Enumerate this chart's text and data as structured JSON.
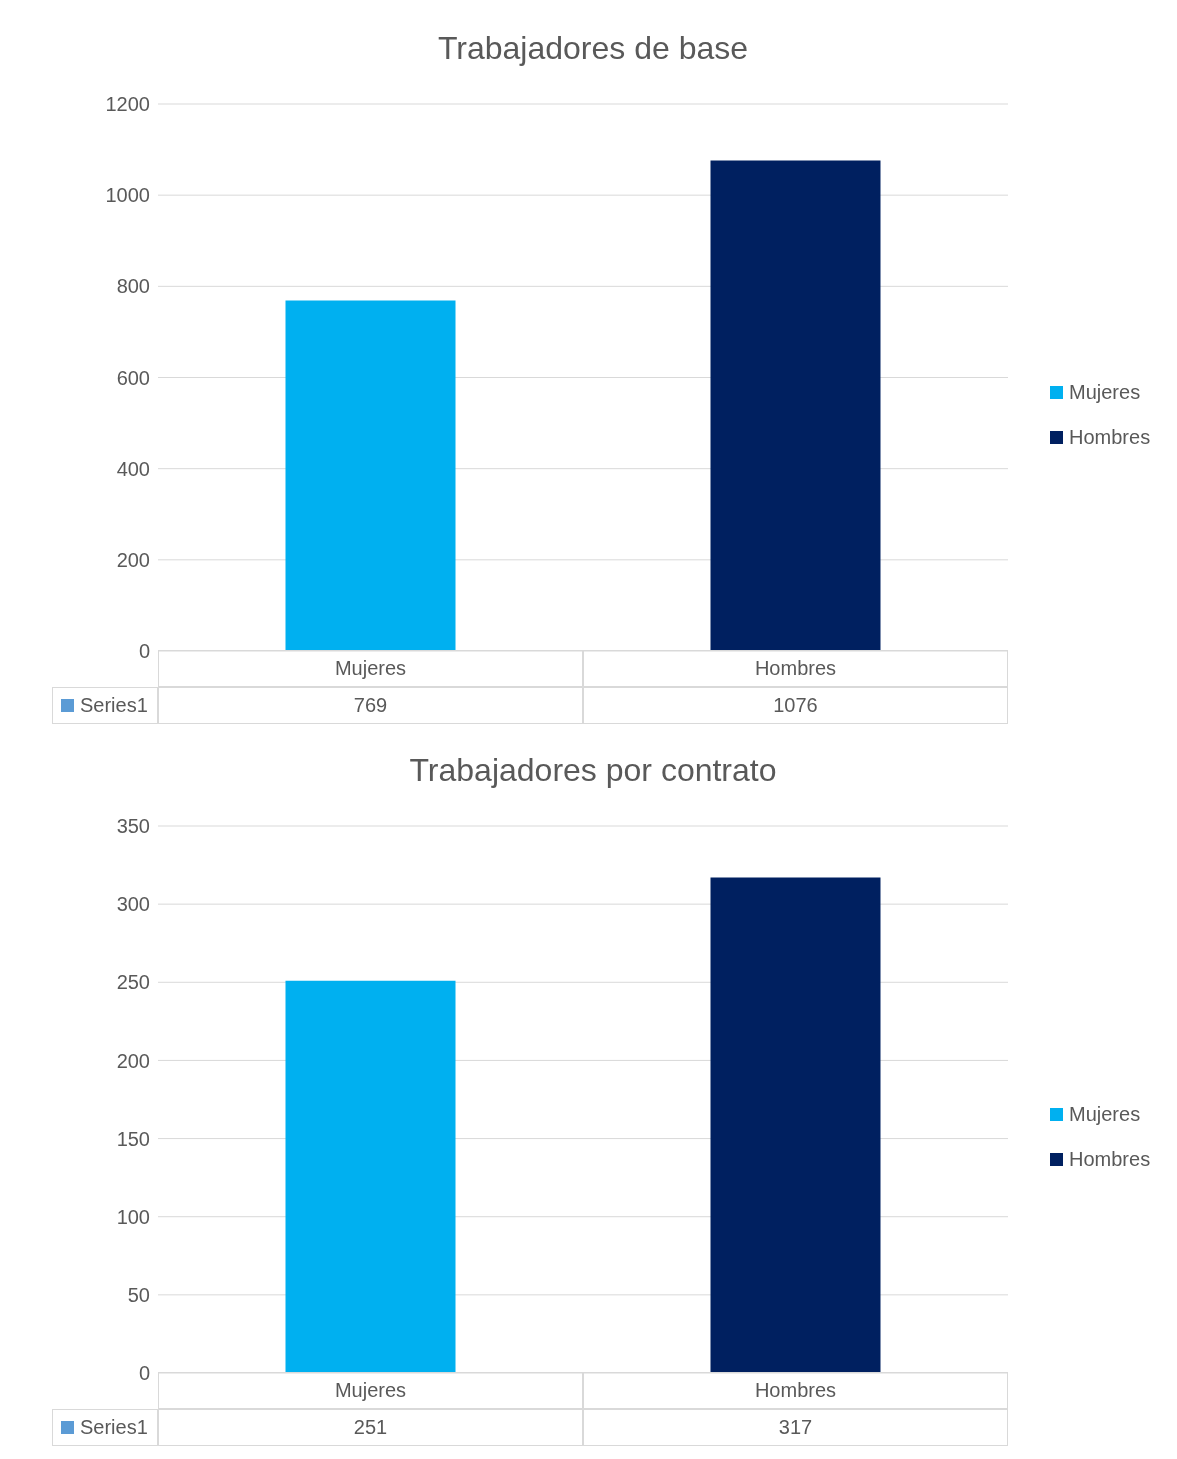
{
  "chart_data": [
    {
      "type": "bar",
      "title": "Trabajadores de base",
      "categories": [
        "Mujeres",
        "Hombres"
      ],
      "series": [
        {
          "name": "Mujeres",
          "color": "#00b0f0",
          "values": [
            769,
            null
          ]
        },
        {
          "name": "Hombres",
          "color": "#002060",
          "values": [
            null,
            1076
          ]
        }
      ],
      "stacked": true,
      "annotations": [
        "Series1"
      ],
      "ylim": [
        0,
        1200
      ],
      "yticks": [
        0,
        200,
        400,
        600,
        800,
        1000,
        1200
      ],
      "grid": "y",
      "legend": "right",
      "data_labels": true
    },
    {
      "type": "bar",
      "title": "Trabajadores por contrato",
      "categories": [
        "Mujeres",
        "Hombres"
      ],
      "series": [
        {
          "name": "Mujeres",
          "color": "#00b0f0",
          "values": [
            251,
            null
          ]
        },
        {
          "name": "Hombres",
          "color": "#002060",
          "values": [
            null,
            317
          ]
        }
      ],
      "stacked": true,
      "annotations": [
        "Series1"
      ],
      "ylim": [
        0,
        350
      ],
      "yticks": [
        0,
        50,
        100,
        150,
        200,
        250,
        300,
        350
      ],
      "grid": "y",
      "legend": "right",
      "data_labels": true
    }
  ]
}
